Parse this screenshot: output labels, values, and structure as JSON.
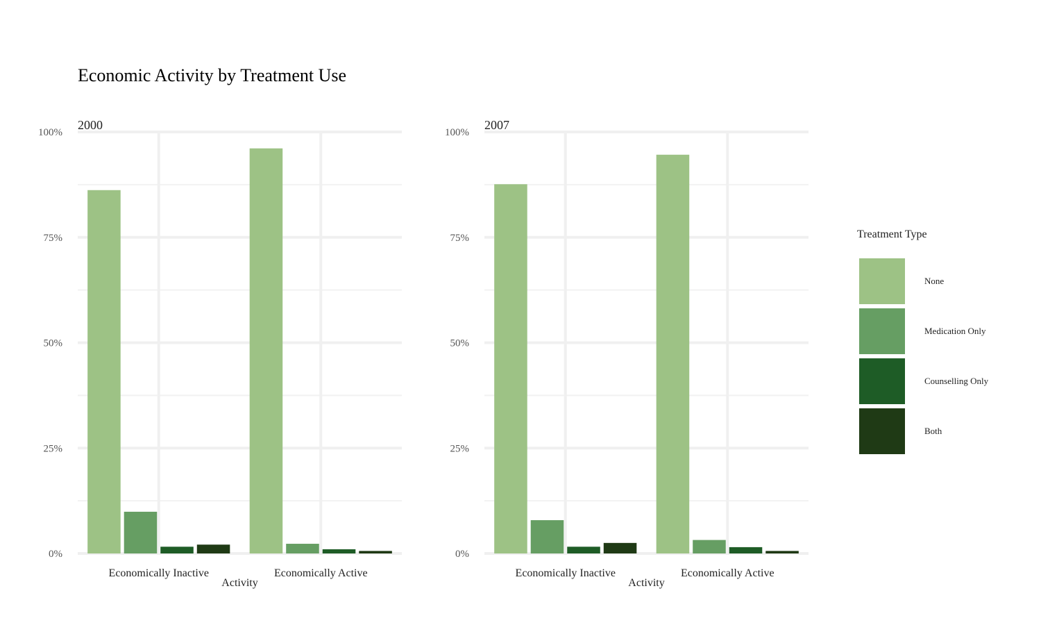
{
  "chart_data": {
    "type": "bar",
    "title": "Economic Activity by Treatment Use",
    "xlabel": "Activity",
    "ylabel": "",
    "ylim": [
      0,
      100
    ],
    "yticks": [
      "0%",
      "25%",
      "50%",
      "75%",
      "100%"
    ],
    "categories": [
      "Economically Inactive",
      "Economically Active"
    ],
    "legend": {
      "title": "Treatment Type",
      "position": "right",
      "items": [
        "None",
        "Medication Only",
        "Counselling Only",
        "Both"
      ],
      "colors": [
        "#9dc285",
        "#669e63",
        "#1e5c26",
        "#1f3a15"
      ]
    },
    "grid": true,
    "panels": [
      {
        "label": "2000",
        "series": [
          {
            "name": "None",
            "values": [
              86.2,
              96.1
            ]
          },
          {
            "name": "Medication Only",
            "values": [
              9.9,
              2.3
            ]
          },
          {
            "name": "Counselling Only",
            "values": [
              1.6,
              1.0
            ]
          },
          {
            "name": "Both",
            "values": [
              2.1,
              0.6
            ]
          }
        ]
      },
      {
        "label": "2007",
        "series": [
          {
            "name": "None",
            "values": [
              87.6,
              94.6
            ]
          },
          {
            "name": "Medication Only",
            "values": [
              7.9,
              3.2
            ]
          },
          {
            "name": "Counselling Only",
            "values": [
              1.6,
              1.5
            ]
          },
          {
            "name": "Both",
            "values": [
              2.5,
              0.6
            ]
          }
        ]
      }
    ]
  }
}
